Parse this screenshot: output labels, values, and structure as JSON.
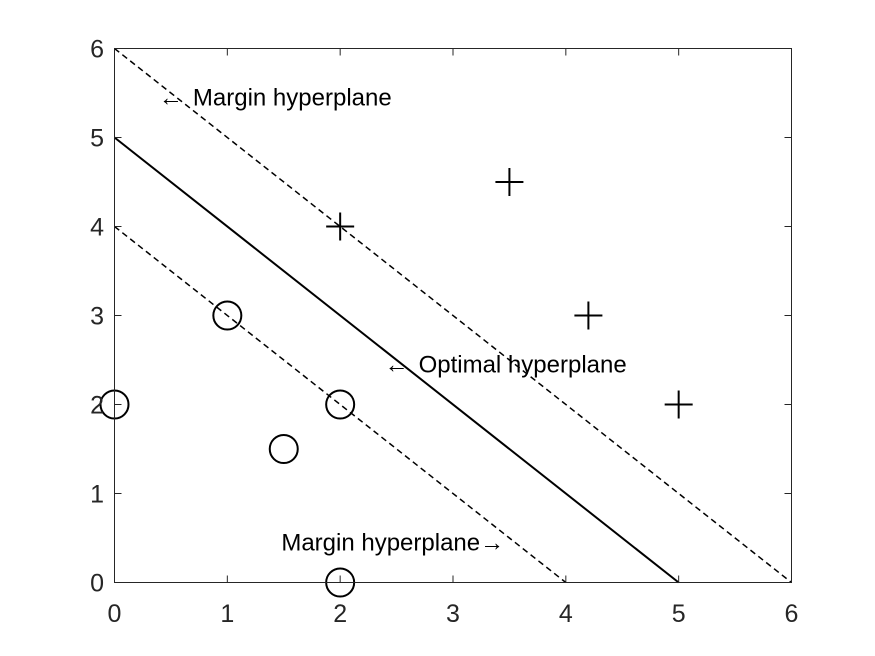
{
  "chart_data": {
    "type": "scatter",
    "xlim": [
      0,
      6
    ],
    "ylim": [
      0,
      6
    ],
    "xticks": [
      0,
      1,
      2,
      3,
      4,
      5,
      6
    ],
    "yticks": [
      0,
      1,
      2,
      3,
      4,
      5,
      6
    ],
    "grid": false,
    "series": [
      {
        "marker": "plus",
        "points": [
          [
            2,
            4
          ],
          [
            3.5,
            4.5
          ],
          [
            4.2,
            3
          ],
          [
            5,
            2
          ]
        ]
      },
      {
        "marker": "circle",
        "points": [
          [
            0,
            2
          ],
          [
            1,
            3
          ],
          [
            2,
            2
          ],
          [
            1.5,
            1.5
          ],
          [
            2,
            0
          ]
        ]
      }
    ],
    "lines": [
      {
        "label": "Optimal hyperplane",
        "style": "solid",
        "from": [
          0,
          5
        ],
        "to": [
          5,
          0
        ]
      },
      {
        "label": "Margin hyperplane",
        "style": "dashed",
        "from": [
          0,
          6
        ],
        "to": [
          6,
          0
        ]
      },
      {
        "label": "Margin hyperplane",
        "style": "dashed",
        "from": [
          0,
          4
        ],
        "to": [
          4,
          0
        ]
      }
    ],
    "annotations": [
      {
        "text": "Margin hyperplane",
        "arrow": "←",
        "at": [
          0.5,
          5.45
        ],
        "side": "after"
      },
      {
        "text": "Optimal hyperplane",
        "arrow": "←",
        "at": [
          2.5,
          2.45
        ],
        "side": "after"
      },
      {
        "text": "Margin hyperplane",
        "arrow": "→",
        "at": [
          3.4,
          0.45
        ],
        "side": "before"
      }
    ]
  }
}
